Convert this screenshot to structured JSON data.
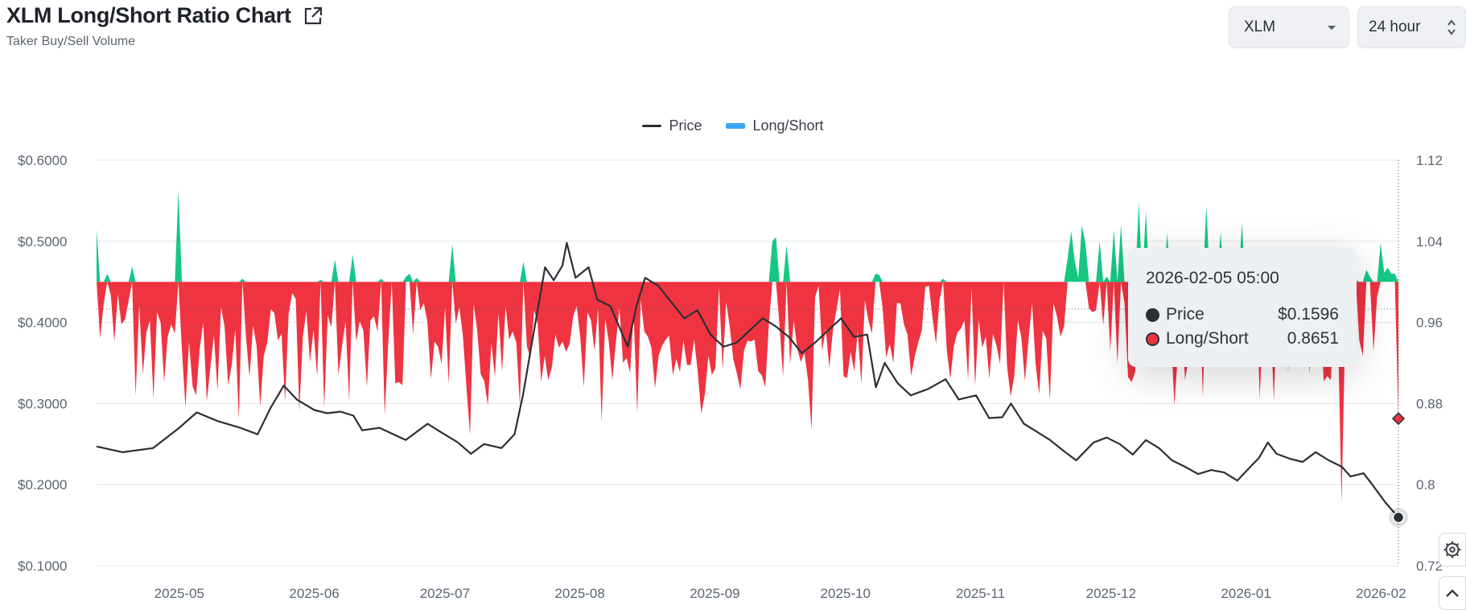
{
  "header": {
    "title": "XLM Long/Short Ratio Chart",
    "subtitle": "Taker Buy/Sell Volume"
  },
  "controls": {
    "coin": "XLM",
    "period": "24 hour"
  },
  "icons": {
    "external_link": "external-link-icon",
    "dropdown": "chevron-down-icon",
    "period_toggle": "up-down-chevron-icon",
    "settings": "gear-icon",
    "scroll_top": "chevron-up-icon"
  },
  "colors": {
    "price_line": "#2b2f36",
    "long_short_above": "#16c784",
    "long_short_below": "#ef3340",
    "legend_long_short": "#3aa7f0"
  },
  "tooltip": {
    "date": "2026-02-05 05:00",
    "price_label": "Price",
    "price_value": "$0.1596",
    "ls_label": "Long/Short",
    "ls_value": "0.8651"
  },
  "chart_data": {
    "type": "line",
    "legend": [
      "Price",
      "Long/Short"
    ],
    "legend_position": "top-center",
    "left_axis": {
      "ticks": [
        "$0.6000",
        "$0.5000",
        "$0.4000",
        "$0.3000",
        "$0.2000",
        "$0.1000"
      ],
      "range": [
        0.1,
        0.6
      ]
    },
    "right_axis": {
      "ticks": [
        "1.12",
        "1.04",
        "0.96",
        "0.88",
        "0.8",
        "0.72"
      ],
      "range": [
        0.72,
        1.12
      ],
      "baseline": 1.0
    },
    "x_ticks": [
      "2025-05",
      "2025-06",
      "2025-07",
      "2025-08",
      "2025-09",
      "2025-10",
      "2025-11",
      "2025-12",
      "2026-01",
      "2026-02"
    ],
    "x_range": [
      "2025-04-12",
      "2026-02-05"
    ],
    "grid": true,
    "series": [
      {
        "name": "Price",
        "axis": "left",
        "points": [
          [
            "2025-04-12",
            0.247
          ],
          [
            "2025-04-18",
            0.24
          ],
          [
            "2025-04-25",
            0.245
          ],
          [
            "2025-05-01",
            0.27
          ],
          [
            "2025-05-05",
            0.289
          ],
          [
            "2025-05-10",
            0.278
          ],
          [
            "2025-05-15",
            0.27
          ],
          [
            "2025-05-19",
            0.262
          ],
          [
            "2025-05-22",
            0.295
          ],
          [
            "2025-05-25",
            0.322
          ],
          [
            "2025-05-28",
            0.305
          ],
          [
            "2025-06-01",
            0.292
          ],
          [
            "2025-06-04",
            0.288
          ],
          [
            "2025-06-07",
            0.29
          ],
          [
            "2025-06-10",
            0.285
          ],
          [
            "2025-06-12",
            0.267
          ],
          [
            "2025-06-16",
            0.27
          ],
          [
            "2025-06-20",
            0.26
          ],
          [
            "2025-06-22",
            0.255
          ],
          [
            "2025-06-27",
            0.275
          ],
          [
            "2025-06-30",
            0.265
          ],
          [
            "2025-07-04",
            0.252
          ],
          [
            "2025-07-07",
            0.238
          ],
          [
            "2025-07-10",
            0.25
          ],
          [
            "2025-07-14",
            0.245
          ],
          [
            "2025-07-17",
            0.262
          ],
          [
            "2025-07-19",
            0.312
          ],
          [
            "2025-07-21",
            0.375
          ],
          [
            "2025-07-24",
            0.468
          ],
          [
            "2025-07-26",
            0.452
          ],
          [
            "2025-07-28",
            0.47
          ],
          [
            "2025-07-29",
            0.498
          ],
          [
            "2025-07-31",
            0.455
          ],
          [
            "2025-08-03",
            0.468
          ],
          [
            "2025-08-05",
            0.428
          ],
          [
            "2025-08-08",
            0.42
          ],
          [
            "2025-08-10",
            0.395
          ],
          [
            "2025-08-12",
            0.37
          ],
          [
            "2025-08-14",
            0.42
          ],
          [
            "2025-08-16",
            0.455
          ],
          [
            "2025-08-19",
            0.445
          ],
          [
            "2025-08-22",
            0.425
          ],
          [
            "2025-08-25",
            0.405
          ],
          [
            "2025-08-28",
            0.415
          ],
          [
            "2025-08-31",
            0.385
          ],
          [
            "2025-09-03",
            0.37
          ],
          [
            "2025-09-06",
            0.375
          ],
          [
            "2025-09-09",
            0.39
          ],
          [
            "2025-09-12",
            0.405
          ],
          [
            "2025-09-15",
            0.395
          ],
          [
            "2025-09-18",
            0.382
          ],
          [
            "2025-09-21",
            0.362
          ],
          [
            "2025-09-24",
            0.375
          ],
          [
            "2025-09-27",
            0.39
          ],
          [
            "2025-09-30",
            0.405
          ],
          [
            "2025-10-03",
            0.382
          ],
          [
            "2025-10-06",
            0.385
          ],
          [
            "2025-10-08",
            0.32
          ],
          [
            "2025-10-10",
            0.35
          ],
          [
            "2025-10-13",
            0.325
          ],
          [
            "2025-10-16",
            0.31
          ],
          [
            "2025-10-20",
            0.318
          ],
          [
            "2025-10-24",
            0.33
          ],
          [
            "2025-10-27",
            0.305
          ],
          [
            "2025-10-31",
            0.31
          ],
          [
            "2025-11-03",
            0.282
          ],
          [
            "2025-11-06",
            0.283
          ],
          [
            "2025-11-08",
            0.3
          ],
          [
            "2025-11-11",
            0.275
          ],
          [
            "2025-11-14",
            0.265
          ],
          [
            "2025-11-17",
            0.255
          ],
          [
            "2025-11-20",
            0.242
          ],
          [
            "2025-11-23",
            0.23
          ],
          [
            "2025-11-27",
            0.252
          ],
          [
            "2025-11-30",
            0.258
          ],
          [
            "2025-12-03",
            0.25
          ],
          [
            "2025-12-06",
            0.237
          ],
          [
            "2025-12-09",
            0.255
          ],
          [
            "2025-12-12",
            0.245
          ],
          [
            "2025-12-15",
            0.23
          ],
          [
            "2025-12-18",
            0.222
          ],
          [
            "2025-12-21",
            0.213
          ],
          [
            "2025-12-24",
            0.218
          ],
          [
            "2025-12-27",
            0.215
          ],
          [
            "2025-12-30",
            0.205
          ],
          [
            "2026-01-02",
            0.222
          ],
          [
            "2026-01-04",
            0.233
          ],
          [
            "2026-01-06",
            0.252
          ],
          [
            "2026-01-08",
            0.238
          ],
          [
            "2026-01-11",
            0.232
          ],
          [
            "2026-01-14",
            0.228
          ],
          [
            "2026-01-17",
            0.24
          ],
          [
            "2026-01-20",
            0.23
          ],
          [
            "2026-01-23",
            0.222
          ],
          [
            "2026-01-25",
            0.21
          ],
          [
            "2026-01-28",
            0.214
          ],
          [
            "2026-01-30",
            0.2
          ],
          [
            "2026-02-02",
            0.178
          ],
          [
            "2026-02-05",
            0.1596
          ]
        ]
      },
      {
        "name": "Long/Short",
        "axis": "right",
        "values": [
          1.052,
          0.944,
          0.978,
          1.008,
          0.987,
          0.941,
          0.988,
          0.958,
          0.963,
          0.981,
          1.015,
          0.887,
          0.977,
          0.909,
          0.95,
          0.962,
          0.885,
          0.97,
          0.96,
          0.901,
          0.946,
          0.958,
          0.949,
          1.09,
          0.933,
          0.876,
          0.941,
          0.897,
          0.888,
          0.934,
          0.96,
          0.882,
          0.916,
          0.948,
          0.892,
          0.975,
          0.956,
          0.898,
          0.918,
          0.953,
          0.864,
          1.003,
          0.946,
          0.906,
          0.957,
          0.937,
          0.877,
          0.927,
          0.94,
          0.973,
          0.969,
          0.942,
          0.949,
          0.882,
          0.968,
          0.989,
          0.983,
          0.872,
          0.946,
          0.971,
          0.921,
          0.953,
          0.906,
          1.002,
          0.875,
          0.967,
          0.955,
          1.022,
          0.908,
          0.936,
          0.961,
          0.882,
          1.027,
          0.941,
          0.961,
          0.952,
          0.896,
          0.962,
          0.966,
          0.951,
          1.003,
          0.868,
          0.939,
          1.0,
          0.9,
          0.901,
          0.898,
          1.005,
          1.008,
          0.948,
          1.004,
          0.972,
          0.979,
          0.961,
          0.904,
          0.941,
          0.936,
          0.919,
          0.975,
          0.899,
          1.037,
          0.959,
          0.975,
          0.947,
          0.895,
          0.849,
          0.978,
          0.953,
          0.909,
          0.902,
          0.878,
          0.94,
          0.906,
          0.969,
          0.911,
          0.976,
          0.943,
          0.951,
          0.94,
          0.878,
          1.02,
          0.936,
          0.925,
          0.972,
          0.959,
          0.901,
          0.927,
          0.903,
          0.916,
          0.948,
          0.935,
          0.941,
          0.931,
          0.939,
          0.966,
          0.976,
          0.945,
          0.896,
          0.97,
          0.962,
          0.932,
          0.974,
          0.862,
          0.964,
          0.941,
          0.903,
          0.94,
          0.974,
          0.92,
          0.925,
          0.91,
          0.969,
          0.87,
          0.982,
          0.951,
          0.946,
          0.935,
          0.895,
          0.927,
          0.937,
          0.943,
          0.947,
          0.908,
          0.924,
          0.911,
          0.942,
          0.918,
          0.918,
          0.943,
          0.912,
          0.87,
          0.889,
          0.927,
          0.908,
          0.915,
          0.995,
          0.913,
          0.98,
          0.956,
          0.924,
          0.91,
          0.894,
          0.932,
          0.942,
          0.941,
          0.943,
          0.912,
          0.908,
          0.896,
          0.957,
          1.04,
          1.044,
          0.957,
          0.906,
          1.036,
          0.919,
          0.962,
          0.934,
          0.921,
          0.93,
          0.903,
          0.854,
          0.985,
          0.996,
          0.932,
          0.954,
          0.915,
          0.952,
          0.972,
          0.993,
          0.907,
          0.905,
          0.931,
          0.912,
          0.951,
          0.899,
          0.982,
          0.962,
          0.949,
          1.008,
          1.007,
          0.974,
          0.925,
          0.939,
          0.92,
          0.979,
          0.979,
          0.958,
          0.948,
          0.907,
          0.926,
          0.94,
          0.952,
          0.995,
          0.996,
          0.965,
          0.939,
          0.982,
          1.003,
          0.934,
          0.904,
          0.936,
          0.95,
          0.954,
          0.962,
          0.903,
          0.994,
          0.897,
          0.962,
          0.935,
          0.946,
          0.904,
          0.949,
          0.937,
          0.919,
          1.0,
          0.916,
          0.887,
          0.907,
          0.962,
          0.945,
          0.902,
          0.942,
          0.979,
          0.919,
          0.889,
          0.952,
          0.944,
          0.883,
          0.979,
          0.966,
          0.946,
          0.956,
          1.023,
          1.05,
          1.021,
          1.004,
          1.056,
          1.038,
          0.974,
          0.97,
          0.972,
          1.04,
          0.957,
          1.005,
          0.932,
          1.051,
          0.919,
          1.056,
          0.979,
          0.906,
          0.901,
          0.911,
          1.079,
          0.962,
          1.07,
          0.96,
          0.93,
          0.982,
          1.002,
          0.95,
          1.048,
          0.956,
          0.878,
          0.928,
          0.97,
          0.903,
          0.924,
          0.957,
          0.993,
          1.015,
          0.886,
          1.075,
          0.934,
          0.975,
          1.0,
          1.049,
          0.953,
          0.96,
          0.993,
          0.931,
          0.931,
          1.058,
          0.96,
          0.927,
          0.955,
          0.997,
          0.885,
          0.966,
          0.975,
          0.963,
          0.883,
          0.994,
          0.968,
          0.958,
          0.912,
          0.971,
          1.007,
          0.929,
          0.965,
          1.032,
          0.91,
          0.956,
          0.941,
          0.973,
          0.902,
          0.907,
          0.903,
          0.976,
          0.956,
          0.782,
          0.946,
          0.978,
          0.964,
          1.002,
          0.942,
          0.927,
          1.012,
          1.005,
          0.931,
          0.985,
          1.038,
          1.009,
          1.014,
          1.008,
          1.008,
          0.8651
        ]
      }
    ]
  }
}
